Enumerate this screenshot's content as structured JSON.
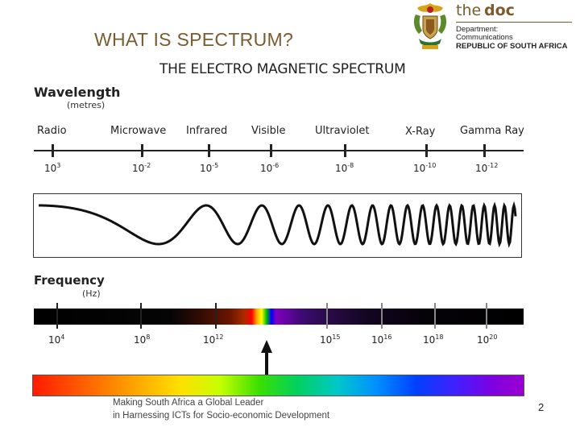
{
  "slide": {
    "title": "WHAT IS SPECTRUM?",
    "page_number": "2",
    "footer_line1": "Making South Africa a Global Leader",
    "footer_line2": "in Harnessing ICTs for Socio-economic Development"
  },
  "logo": {
    "the": "the",
    "doc": "doc",
    "line1": "Department:",
    "line2": "Communications",
    "line3": "REPUBLIC OF SOUTH AFRICA"
  },
  "diagram": {
    "title": "THE ELECTRO MAGNETIC SPECTRUM",
    "wavelength_label": "Wavelength",
    "wavelength_unit": "(metres)",
    "frequency_label": "Frequency",
    "frequency_unit": "(Hz)",
    "bands": [
      {
        "name": "Radio",
        "wavelength_base": "10",
        "wavelength_exp": "3"
      },
      {
        "name": "Microwave",
        "wavelength_base": "10",
        "wavelength_exp": "-2"
      },
      {
        "name": "Infrared",
        "wavelength_base": "10",
        "wavelength_exp": "-5"
      },
      {
        "name": "Visible",
        "wavelength_base": "10",
        "wavelength_exp": "-6"
      },
      {
        "name": "Ultraviolet",
        "wavelength_base": "10",
        "wavelength_exp": "-8"
      },
      {
        "name": "X-Ray",
        "wavelength_base": "10",
        "wavelength_exp": "-10"
      },
      {
        "name": "Gamma Ray",
        "wavelength_base": "10",
        "wavelength_exp": "-12"
      }
    ],
    "frequencies": [
      {
        "base": "10",
        "exp": "4"
      },
      {
        "base": "10",
        "exp": "8"
      },
      {
        "base": "10",
        "exp": "12"
      },
      {
        "base": "10",
        "exp": "15"
      },
      {
        "base": "10",
        "exp": "16"
      },
      {
        "base": "10",
        "exp": "18"
      },
      {
        "base": "10",
        "exp": "20"
      }
    ],
    "colors": {
      "title": "#7a5c2e",
      "frequency_bar_visible": [
        "#ff0000",
        "#ffa500",
        "#ffff00",
        "#00c000",
        "#0000ff",
        "#8000c0"
      ]
    }
  }
}
